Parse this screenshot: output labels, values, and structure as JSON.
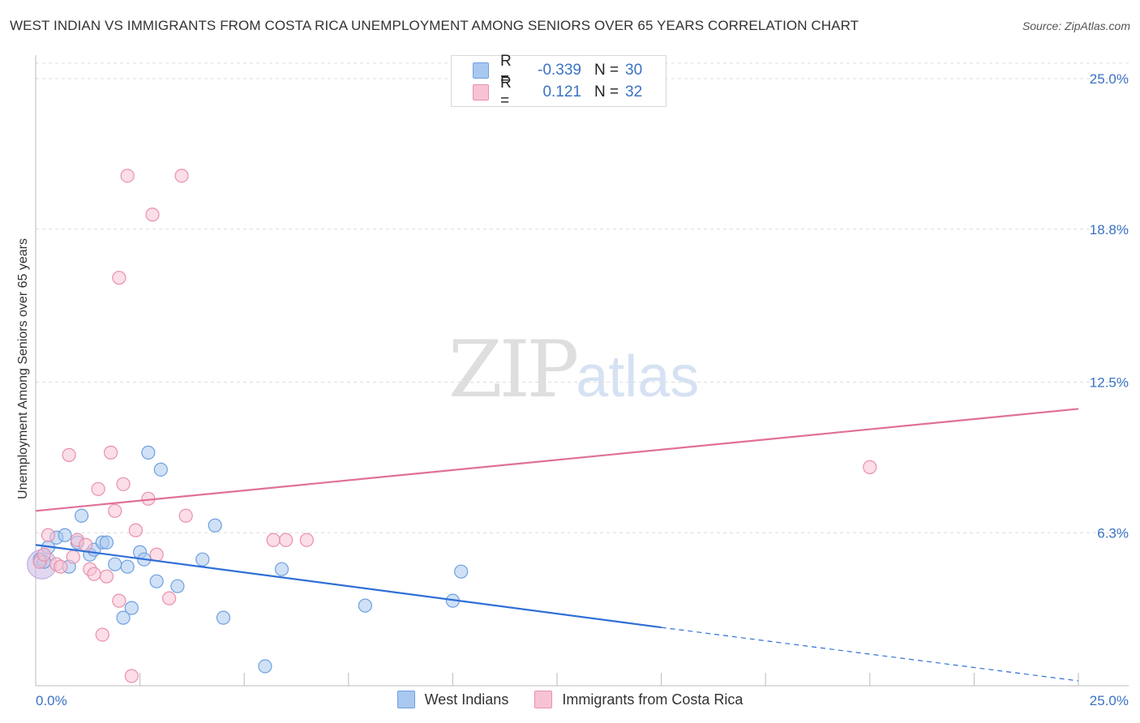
{
  "title": "WEST INDIAN VS IMMIGRANTS FROM COSTA RICA UNEMPLOYMENT AMONG SENIORS OVER 65 YEARS CORRELATION CHART",
  "source": "Source: ZipAtlas.com",
  "watermark": {
    "zip": "ZIP",
    "atlas": "atlas"
  },
  "legend": {
    "rows": [
      {
        "r_label": "R =",
        "r_value": "-0.339",
        "n_label": "N =",
        "n_value": "30",
        "color": "#a9c8ef",
        "stroke": "#6fa0e0"
      },
      {
        "r_label": "R =",
        "r_value": "0.121",
        "n_label": "N =",
        "n_value": "32",
        "color": "#f7c3d3",
        "stroke": "#ea8fae"
      }
    ]
  },
  "bottom_legend": [
    "West Indians",
    "Immigrants from Costa Rica"
  ],
  "chart_data": {
    "type": "scatter",
    "title": "WEST INDIAN VS IMMIGRANTS FROM COSTA RICA UNEMPLOYMENT AMONG SENIORS OVER 65 YEARS CORRELATION CHART",
    "xlabel": "",
    "ylabel": "Unemployment Among Seniors over 65 years",
    "xlim": [
      0,
      25
    ],
    "ylim": [
      0,
      25
    ],
    "x_tick_labels": [
      "0.0%",
      "25.0%"
    ],
    "y_ticks": [
      6.3,
      12.5,
      18.8,
      25.0
    ],
    "y_tick_labels": [
      "6.3%",
      "12.5%",
      "18.8%",
      "25.0%"
    ],
    "grid": true,
    "series": [
      {
        "name": "West Indians",
        "color": "#6fa0e0",
        "fill": "#a9c8ef",
        "line_color": "#2f6fd6",
        "trend": {
          "x0": 0,
          "y0": 5.8,
          "x1": 15,
          "y1": 2.4,
          "dashed_to_x": 25,
          "dashed_to_y": 0.2
        },
        "points": [
          [
            0.1,
            5.2
          ],
          [
            0.2,
            5.1
          ],
          [
            0.3,
            5.7
          ],
          [
            0.5,
            6.1
          ],
          [
            0.7,
            6.2
          ],
          [
            0.8,
            4.9
          ],
          [
            1.0,
            5.9
          ],
          [
            1.1,
            7.0
          ],
          [
            1.3,
            5.4
          ],
          [
            1.4,
            5.6
          ],
          [
            1.6,
            5.9
          ],
          [
            1.7,
            5.9
          ],
          [
            1.9,
            5.0
          ],
          [
            2.1,
            2.8
          ],
          [
            2.2,
            4.9
          ],
          [
            2.3,
            3.2
          ],
          [
            2.5,
            5.5
          ],
          [
            2.6,
            5.2
          ],
          [
            2.7,
            9.6
          ],
          [
            2.9,
            4.3
          ],
          [
            3.0,
            8.9
          ],
          [
            3.4,
            4.1
          ],
          [
            4.0,
            5.2
          ],
          [
            4.3,
            6.6
          ],
          [
            4.5,
            2.8
          ],
          [
            5.5,
            0.8
          ],
          [
            5.9,
            4.8
          ],
          [
            7.9,
            3.3
          ],
          [
            10.0,
            3.5
          ],
          [
            10.2,
            4.7
          ]
        ]
      },
      {
        "name": "Immigrants from Costa Rica",
        "color": "#ea8fae",
        "fill": "#f7c3d3",
        "line_color": "#e07098",
        "trend": {
          "x0": 0,
          "y0": 7.2,
          "x1": 25,
          "y1": 11.4
        },
        "points": [
          [
            0.1,
            5.1
          ],
          [
            0.2,
            5.4
          ],
          [
            0.3,
            6.2
          ],
          [
            0.5,
            5.0
          ],
          [
            0.6,
            4.9
          ],
          [
            0.8,
            9.5
          ],
          [
            0.9,
            5.3
          ],
          [
            1.0,
            6.0
          ],
          [
            1.2,
            5.8
          ],
          [
            1.3,
            4.8
          ],
          [
            1.4,
            4.6
          ],
          [
            1.5,
            8.1
          ],
          [
            1.6,
            2.1
          ],
          [
            1.7,
            4.5
          ],
          [
            1.8,
            9.6
          ],
          [
            1.9,
            7.2
          ],
          [
            2.0,
            3.5
          ],
          [
            2.1,
            8.3
          ],
          [
            2.2,
            21.0
          ],
          [
            2.3,
            0.4
          ],
          [
            2.4,
            6.4
          ],
          [
            2.7,
            7.7
          ],
          [
            2.8,
            19.4
          ],
          [
            2.9,
            5.4
          ],
          [
            3.2,
            3.6
          ],
          [
            3.5,
            21.0
          ],
          [
            3.6,
            7.0
          ],
          [
            5.7,
            6.0
          ],
          [
            6.0,
            6.0
          ],
          [
            6.5,
            6.0
          ],
          [
            2.0,
            16.8
          ],
          [
            20.0,
            9.0
          ]
        ]
      }
    ]
  }
}
